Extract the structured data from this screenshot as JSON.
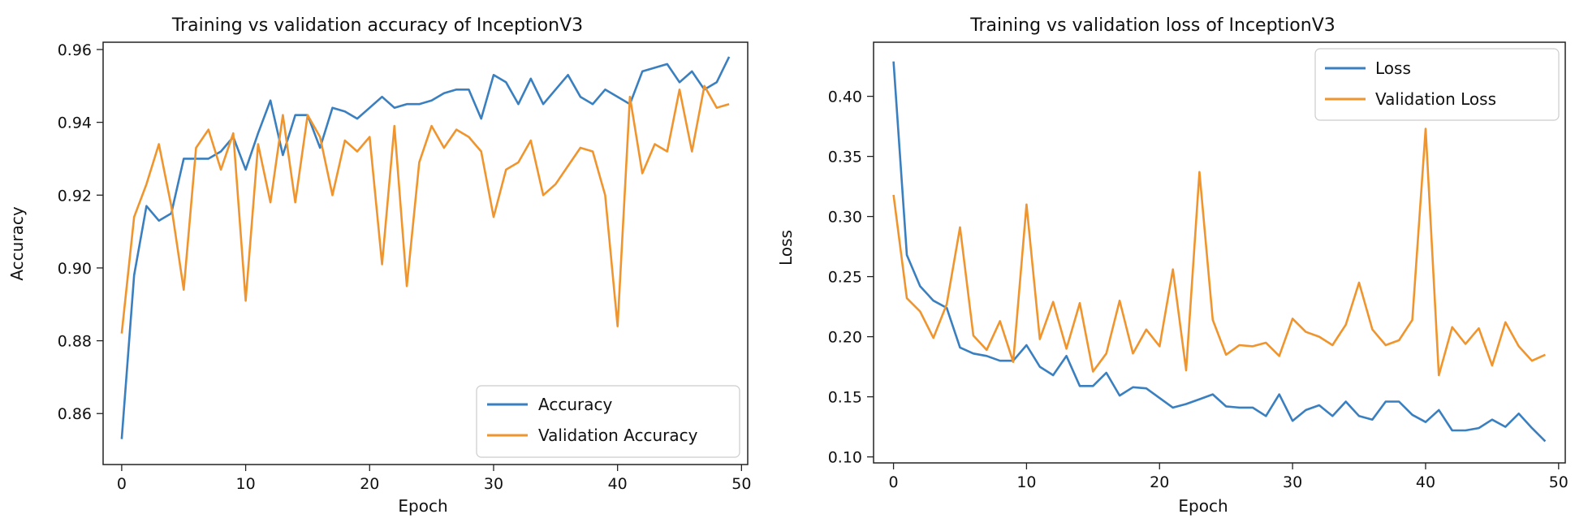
{
  "colors": {
    "train": "#3a7fbf",
    "validation": "#f0952e"
  },
  "chart_data": [
    {
      "type": "line",
      "title": "Training vs validation accuracy of InceptionV3",
      "xlabel": "Epoch",
      "ylabel": "Accuracy",
      "xlim": [
        -1.5,
        50.5
      ],
      "ylim": [
        0.846,
        0.962
      ],
      "xticks": [
        0,
        10,
        20,
        30,
        40,
        50
      ],
      "xtick_labels": [
        "0",
        "10",
        "20",
        "30",
        "40",
        "50"
      ],
      "yticks": [
        0.86,
        0.88,
        0.9,
        0.92,
        0.94,
        0.96
      ],
      "ytick_labels": [
        "0.86",
        "0.88",
        "0.90",
        "0.92",
        "0.94",
        "0.96"
      ],
      "legend_position": "bottom-right",
      "grid": false,
      "series": [
        {
          "name": "Accuracy",
          "x": [
            0,
            1,
            2,
            3,
            4,
            5,
            6,
            7,
            8,
            9,
            10,
            11,
            12,
            13,
            14,
            15,
            16,
            17,
            18,
            19,
            20,
            21,
            22,
            23,
            24,
            25,
            26,
            27,
            28,
            29,
            30,
            31,
            32,
            33,
            34,
            35,
            36,
            37,
            38,
            39,
            40,
            41,
            42,
            43,
            44,
            45,
            46,
            47,
            48,
            49
          ],
          "y": [
            0.853,
            0.898,
            0.917,
            0.913,
            0.915,
            0.93,
            0.93,
            0.93,
            0.932,
            0.936,
            0.927,
            0.937,
            0.946,
            0.931,
            0.942,
            0.942,
            0.933,
            0.944,
            0.943,
            0.941,
            0.944,
            0.947,
            0.944,
            0.945,
            0.945,
            0.946,
            0.948,
            0.949,
            0.949,
            0.941,
            0.953,
            0.951,
            0.945,
            0.952,
            0.945,
            0.949,
            0.953,
            0.947,
            0.945,
            0.949,
            0.947,
            0.945,
            0.954,
            0.955,
            0.956,
            0.951,
            0.954,
            0.949,
            0.951,
            0.958
          ]
        },
        {
          "name": "Validation Accuracy",
          "x": [
            0,
            1,
            2,
            3,
            4,
            5,
            6,
            7,
            8,
            9,
            10,
            11,
            12,
            13,
            14,
            15,
            16,
            17,
            18,
            19,
            20,
            21,
            22,
            23,
            24,
            25,
            26,
            27,
            28,
            29,
            30,
            31,
            32,
            33,
            34,
            35,
            36,
            37,
            38,
            39,
            40,
            41,
            42,
            43,
            44,
            45,
            46,
            47,
            48,
            49
          ],
          "y": [
            0.882,
            0.914,
            0.923,
            0.934,
            0.917,
            0.894,
            0.933,
            0.938,
            0.927,
            0.937,
            0.891,
            0.934,
            0.918,
            0.942,
            0.918,
            0.942,
            0.936,
            0.92,
            0.935,
            0.932,
            0.936,
            0.901,
            0.939,
            0.895,
            0.929,
            0.939,
            0.933,
            0.938,
            0.936,
            0.932,
            0.914,
            0.927,
            0.929,
            0.935,
            0.92,
            0.923,
            0.928,
            0.933,
            0.932,
            0.92,
            0.884,
            0.947,
            0.926,
            0.934,
            0.932,
            0.949,
            0.932,
            0.95,
            0.944,
            0.945
          ]
        }
      ]
    },
    {
      "type": "line",
      "title": "Training vs validation loss of InceptionV3",
      "xlabel": "Epoch",
      "ylabel": "Loss",
      "xlim": [
        -1.5,
        50.5
      ],
      "ylim": [
        0.095,
        0.445
      ],
      "xticks": [
        0,
        10,
        20,
        30,
        40,
        50
      ],
      "xtick_labels": [
        "0",
        "10",
        "20",
        "30",
        "40",
        "50"
      ],
      "yticks": [
        0.1,
        0.15,
        0.2,
        0.25,
        0.3,
        0.35,
        0.4
      ],
      "ytick_labels": [
        "0.10",
        "0.15",
        "0.20",
        "0.25",
        "0.30",
        "0.35",
        "0.40"
      ],
      "legend_position": "top-right",
      "grid": false,
      "series": [
        {
          "name": "Loss",
          "x": [
            0,
            1,
            2,
            3,
            4,
            5,
            6,
            7,
            8,
            9,
            10,
            11,
            12,
            13,
            14,
            15,
            16,
            17,
            18,
            19,
            20,
            21,
            22,
            23,
            24,
            25,
            26,
            27,
            28,
            29,
            30,
            31,
            32,
            33,
            34,
            35,
            36,
            37,
            38,
            39,
            40,
            41,
            42,
            43,
            44,
            45,
            46,
            47,
            48,
            49
          ],
          "y": [
            0.429,
            0.268,
            0.242,
            0.23,
            0.224,
            0.191,
            0.186,
            0.184,
            0.18,
            0.18,
            0.193,
            0.175,
            0.168,
            0.184,
            0.159,
            0.159,
            0.17,
            0.151,
            0.158,
            0.157,
            0.149,
            0.141,
            0.144,
            0.148,
            0.152,
            0.142,
            0.141,
            0.141,
            0.134,
            0.152,
            0.13,
            0.139,
            0.143,
            0.134,
            0.146,
            0.134,
            0.131,
            0.146,
            0.146,
            0.135,
            0.129,
            0.139,
            0.122,
            0.122,
            0.124,
            0.131,
            0.125,
            0.136,
            0.124,
            0.113
          ]
        },
        {
          "name": "Validation Loss",
          "x": [
            0,
            1,
            2,
            3,
            4,
            5,
            6,
            7,
            8,
            9,
            10,
            11,
            12,
            13,
            14,
            15,
            16,
            17,
            18,
            19,
            20,
            21,
            22,
            23,
            24,
            25,
            26,
            27,
            28,
            29,
            30,
            31,
            32,
            33,
            34,
            35,
            36,
            37,
            38,
            39,
            40,
            41,
            42,
            43,
            44,
            45,
            46,
            47,
            48,
            49
          ],
          "y": [
            0.318,
            0.232,
            0.221,
            0.199,
            0.227,
            0.291,
            0.201,
            0.189,
            0.213,
            0.179,
            0.31,
            0.198,
            0.229,
            0.19,
            0.228,
            0.171,
            0.186,
            0.23,
            0.186,
            0.206,
            0.192,
            0.256,
            0.172,
            0.337,
            0.214,
            0.185,
            0.193,
            0.192,
            0.195,
            0.184,
            0.215,
            0.204,
            0.2,
            0.193,
            0.21,
            0.245,
            0.206,
            0.193,
            0.197,
            0.214,
            0.373,
            0.168,
            0.208,
            0.194,
            0.207,
            0.176,
            0.212,
            0.192,
            0.18,
            0.185
          ]
        }
      ]
    }
  ]
}
